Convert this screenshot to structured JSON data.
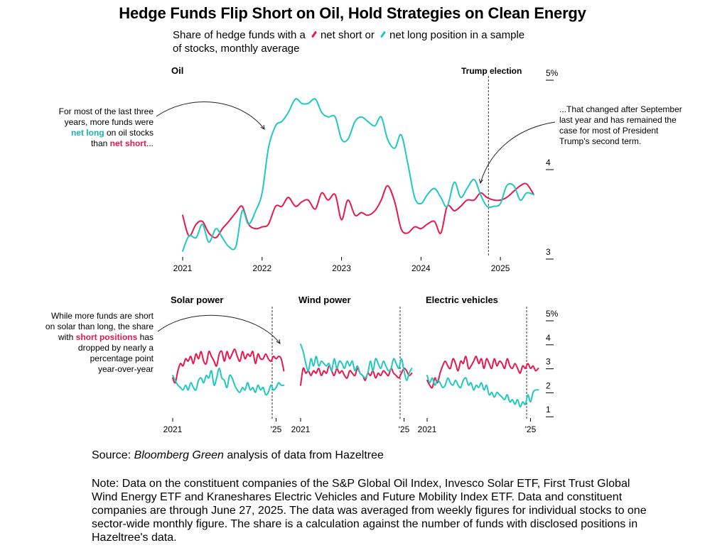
{
  "title": "Hedge Funds Flip Short on Oil, Hold Strategies on Clean Energy",
  "subtitle": {
    "part1": "Share of hedge funds with a",
    "short_label": "net short or",
    "long_label": "net long position in a sample",
    "part2": "of stocks, monthly average"
  },
  "colors": {
    "net_short": "#e8184b",
    "net_long": "#20c9c0"
  },
  "annotations": {
    "oil_left": {
      "line1": "For most of the last three",
      "line2": "years, more funds were",
      "teal": "net long",
      "mid": " on oil stocks",
      "pre": "than ",
      "red": "net short",
      "post": "..."
    },
    "oil_right": {
      "line1": "...That changed after September",
      "line2": "last year and has remained the",
      "line3": "case for most of President",
      "line4": "Trump's second term."
    },
    "solar": {
      "line1": "While more funds are short",
      "line2": "on solar than long, the share",
      "pre": "with ",
      "red": "short positions",
      "post": " has",
      "line4": "dropped by nearly a",
      "line5": "percentage point",
      "line6": "year-over-year"
    }
  },
  "source": {
    "pre": "Source: ",
    "italic": "Bloomberg Green",
    "post": " analysis of data from Hazeltree"
  },
  "note": "Note: Data on the constituent companies of the S&P Global Oil Index, Invesco Solar ETF, First Trust Global Wind Energy ETF and Kraneshares Electric Vehicles and Future Mobility Index ETF. Data and constituent companies are through June 27, 2025. The data was averaged from weekly figures for individual stocks to one sector-wide monthly figure. The share is a calculation against the number of funds with disclosed positions in Hazeltree's data.",
  "chart_data": [
    {
      "type": "line",
      "title": "Oil",
      "x_label_ticks": [
        "2021",
        "2022",
        "2023",
        "2024",
        "2025"
      ],
      "y_ticks": [
        "3",
        "4",
        "5%"
      ],
      "ylim": [
        3,
        5
      ],
      "xlim": [
        2021.0,
        2025.5
      ],
      "event": {
        "label": "Trump election",
        "x": 2024.85
      },
      "series": [
        {
          "name": "net short",
          "color": "#e8184b",
          "x": [
            2021.0,
            2021.08,
            2021.17,
            2021.25,
            2021.33,
            2021.42,
            2021.5,
            2021.58,
            2021.67,
            2021.75,
            2021.83,
            2021.92,
            2022.0,
            2022.08,
            2022.17,
            2022.25,
            2022.33,
            2022.42,
            2022.5,
            2022.58,
            2022.67,
            2022.75,
            2022.83,
            2022.92,
            2023.0,
            2023.08,
            2023.17,
            2023.25,
            2023.33,
            2023.42,
            2023.5,
            2023.58,
            2023.67,
            2023.75,
            2023.83,
            2023.92,
            2024.0,
            2024.08,
            2024.17,
            2024.25,
            2024.33,
            2024.42,
            2024.5,
            2024.58,
            2024.67,
            2024.75,
            2024.83,
            2024.92,
            2025.0,
            2025.08,
            2025.17,
            2025.25,
            2025.33,
            2025.42
          ],
          "values": [
            3.45,
            3.22,
            3.35,
            3.38,
            3.25,
            3.2,
            3.3,
            3.38,
            3.48,
            3.55,
            3.35,
            3.3,
            3.32,
            3.35,
            3.55,
            3.55,
            3.65,
            3.55,
            3.6,
            3.62,
            3.52,
            3.7,
            3.62,
            3.68,
            3.4,
            3.62,
            3.45,
            3.48,
            3.45,
            3.5,
            3.62,
            3.78,
            3.6,
            3.3,
            3.25,
            3.32,
            3.3,
            3.35,
            3.38,
            3.25,
            3.55,
            3.5,
            3.55,
            3.62,
            3.62,
            3.7,
            3.65,
            3.62,
            3.62,
            3.65,
            3.72,
            3.78,
            3.8,
            3.68
          ]
        },
        {
          "name": "net long",
          "color": "#20c9c0",
          "x": [
            2021.0,
            2021.08,
            2021.17,
            2021.25,
            2021.33,
            2021.42,
            2021.5,
            2021.58,
            2021.67,
            2021.75,
            2021.83,
            2021.92,
            2022.0,
            2022.08,
            2022.17,
            2022.25,
            2022.33,
            2022.42,
            2022.5,
            2022.58,
            2022.67,
            2022.75,
            2022.83,
            2022.92,
            2023.0,
            2023.08,
            2023.17,
            2023.25,
            2023.33,
            2023.42,
            2023.5,
            2023.58,
            2023.67,
            2023.75,
            2023.83,
            2023.92,
            2024.0,
            2024.08,
            2024.17,
            2024.25,
            2024.33,
            2024.42,
            2024.5,
            2024.58,
            2024.67,
            2024.75,
            2024.83,
            2024.92,
            2025.0,
            2025.08,
            2025.17,
            2025.25,
            2025.33,
            2025.42
          ],
          "values": [
            3.05,
            3.22,
            3.2,
            3.35,
            3.15,
            3.3,
            3.2,
            3.1,
            3.1,
            3.5,
            3.35,
            3.5,
            3.7,
            4.2,
            4.45,
            4.5,
            4.6,
            4.75,
            4.7,
            4.7,
            4.75,
            4.6,
            4.55,
            4.55,
            4.3,
            4.3,
            4.5,
            4.55,
            4.5,
            4.45,
            4.55,
            4.3,
            4.2,
            4.35,
            4.05,
            3.65,
            3.58,
            3.68,
            3.75,
            3.65,
            3.55,
            3.82,
            3.65,
            3.75,
            3.85,
            3.68,
            3.55,
            3.55,
            3.58,
            3.78,
            3.78,
            3.62,
            3.7,
            3.68
          ]
        }
      ]
    },
    {
      "type": "line",
      "title": "Solar power",
      "x_label_ticks": [
        "2021",
        "'25"
      ],
      "ylim": [
        0.8,
        5
      ],
      "xlim": [
        2021.0,
        2025.4
      ],
      "series": [
        {
          "name": "net short",
          "x": [
            2021.0,
            2021.1,
            2021.2,
            2021.3,
            2021.4,
            2021.5,
            2021.6,
            2021.7,
            2021.8,
            2021.9,
            2022.0,
            2022.1,
            2022.2,
            2022.3,
            2022.4,
            2022.5,
            2022.6,
            2022.7,
            2022.8,
            2022.9,
            2023.0,
            2023.1,
            2023.2,
            2023.3,
            2023.4,
            2023.5,
            2023.6,
            2023.7,
            2023.8,
            2023.9,
            2024.0,
            2024.1,
            2024.2,
            2024.3,
            2024.4,
            2024.5,
            2024.6,
            2024.7,
            2024.8,
            2024.9,
            2025.0,
            2025.1,
            2025.2,
            2025.3
          ],
          "values": [
            2.5,
            2.3,
            2.8,
            3.1,
            3.0,
            3.3,
            3.2,
            3.4,
            3.1,
            3.5,
            3.3,
            3.6,
            3.2,
            3.1,
            3.6,
            3.4,
            3.2,
            3.0,
            3.5,
            3.6,
            3.2,
            3.6,
            3.3,
            3.5,
            3.7,
            3.4,
            3.2,
            3.6,
            3.3,
            3.5,
            3.4,
            3.6,
            3.1,
            3.5,
            3.3,
            3.3,
            3.5,
            3.3,
            3.2,
            3.4,
            3.3,
            3.4,
            3.3,
            2.8
          ]
        },
        {
          "name": "net long",
          "x": [
            2021.0,
            2021.1,
            2021.2,
            2021.3,
            2021.4,
            2021.5,
            2021.6,
            2021.7,
            2021.8,
            2021.9,
            2022.0,
            2022.1,
            2022.2,
            2022.3,
            2022.4,
            2022.5,
            2022.6,
            2022.7,
            2022.8,
            2022.9,
            2023.0,
            2023.1,
            2023.2,
            2023.3,
            2023.4,
            2023.5,
            2023.6,
            2023.7,
            2023.8,
            2023.9,
            2024.0,
            2024.1,
            2024.2,
            2024.3,
            2024.4,
            2024.5,
            2024.6,
            2024.7,
            2024.8,
            2024.9,
            2025.0,
            2025.1,
            2025.2,
            2025.3
          ],
          "values": [
            2.6,
            2.4,
            2.2,
            2.1,
            2.0,
            2.2,
            2.0,
            2.3,
            2.1,
            2.0,
            2.4,
            2.5,
            2.3,
            2.6,
            2.5,
            2.8,
            2.2,
            2.5,
            2.9,
            2.5,
            2.4,
            2.1,
            2.6,
            2.5,
            2.2,
            2.0,
            1.9,
            2.1,
            2.0,
            2.3,
            2.0,
            2.1,
            1.9,
            2.2,
            2.0,
            2.1,
            1.8,
            1.9,
            2.2,
            2.0,
            2.1,
            2.3,
            2.2,
            2.2
          ]
        }
      ]
    },
    {
      "type": "line",
      "title": "Wind power",
      "x_label_ticks": [
        "2021",
        "'25"
      ],
      "ylim": [
        0.8,
        5
      ],
      "xlim": [
        2021.0,
        2025.4
      ],
      "series": [
        {
          "name": "net short",
          "x": [
            2021.0,
            2021.1,
            2021.2,
            2021.3,
            2021.4,
            2021.5,
            2021.6,
            2021.7,
            2021.8,
            2021.9,
            2022.0,
            2022.1,
            2022.2,
            2022.3,
            2022.4,
            2022.5,
            2022.6,
            2022.7,
            2022.8,
            2022.9,
            2023.0,
            2023.1,
            2023.2,
            2023.3,
            2023.4,
            2023.5,
            2023.6,
            2023.7,
            2023.8,
            2023.9,
            2024.0,
            2024.1,
            2024.2,
            2024.3,
            2024.4,
            2024.5,
            2024.6,
            2024.7,
            2024.8,
            2024.9,
            2025.0,
            2025.1,
            2025.2,
            2025.3
          ],
          "values": [
            2.2,
            2.9,
            2.7,
            2.8,
            2.6,
            2.8,
            2.7,
            2.9,
            2.6,
            2.8,
            2.7,
            3.0,
            2.8,
            2.6,
            2.9,
            2.7,
            2.8,
            2.6,
            2.5,
            2.8,
            2.7,
            2.6,
            2.9,
            2.7,
            2.6,
            2.4,
            2.7,
            2.6,
            2.8,
            2.5,
            2.7,
            2.6,
            2.8,
            2.7,
            2.6,
            2.9,
            2.7,
            2.6,
            2.5,
            2.7,
            2.9,
            2.8,
            2.6,
            2.7
          ]
        },
        {
          "name": "net long",
          "x": [
            2021.0,
            2021.1,
            2021.2,
            2021.3,
            2021.4,
            2021.5,
            2021.6,
            2021.7,
            2021.8,
            2021.9,
            2022.0,
            2022.1,
            2022.2,
            2022.3,
            2022.4,
            2022.5,
            2022.6,
            2022.7,
            2022.8,
            2022.9,
            2023.0,
            2023.1,
            2023.2,
            2023.3,
            2023.4,
            2023.5,
            2023.6,
            2023.7,
            2023.8,
            2023.9,
            2024.0,
            2024.1,
            2024.2,
            2024.3,
            2024.4,
            2024.5,
            2024.6,
            2024.7,
            2024.8,
            2024.9,
            2025.0,
            2025.1,
            2025.2,
            2025.3
          ],
          "values": [
            3.9,
            3.6,
            3.1,
            2.8,
            3.3,
            3.0,
            3.4,
            3.0,
            3.2,
            3.1,
            3.0,
            3.1,
            2.8,
            3.3,
            2.9,
            3.2,
            3.1,
            2.9,
            3.2,
            3.0,
            3.2,
            2.8,
            3.0,
            2.7,
            2.6,
            2.5,
            2.7,
            3.2,
            2.8,
            3.3,
            3.1,
            2.9,
            3.2,
            3.0,
            2.8,
            2.9,
            3.3,
            3.1,
            2.9,
            3.3,
            2.8,
            2.4,
            2.7,
            2.9
          ]
        }
      ]
    },
    {
      "type": "line",
      "title": "Electric vehicles",
      "x_label_ticks": [
        "2021",
        "'25"
      ],
      "y_ticks": [
        "1",
        "2",
        "3",
        "4",
        "5%"
      ],
      "ylim": [
        0.8,
        5
      ],
      "xlim": [
        2021.0,
        2025.4
      ],
      "series": [
        {
          "name": "net short",
          "x": [
            2021.0,
            2021.1,
            2021.2,
            2021.3,
            2021.4,
            2021.5,
            2021.6,
            2021.7,
            2021.8,
            2021.9,
            2022.0,
            2022.1,
            2022.2,
            2022.3,
            2022.4,
            2022.5,
            2022.6,
            2022.7,
            2022.8,
            2022.9,
            2023.0,
            2023.1,
            2023.2,
            2023.3,
            2023.4,
            2023.5,
            2023.6,
            2023.7,
            2023.8,
            2023.9,
            2024.0,
            2024.1,
            2024.2,
            2024.3,
            2024.4,
            2024.5,
            2024.6,
            2024.7,
            2024.8,
            2024.9,
            2025.0,
            2025.1,
            2025.2,
            2025.3
          ],
          "values": [
            2.4,
            2.2,
            2.1,
            2.5,
            2.3,
            2.7,
            3.0,
            3.2,
            3.0,
            2.9,
            3.3,
            3.1,
            2.8,
            3.2,
            3.1,
            3.4,
            2.9,
            3.0,
            3.2,
            3.4,
            3.1,
            3.3,
            2.9,
            3.3,
            3.1,
            2.9,
            3.3,
            3.0,
            3.2,
            3.1,
            2.9,
            3.3,
            3.0,
            2.9,
            3.1,
            2.9,
            2.7,
            3.0,
            2.9,
            3.1,
            2.9,
            3.0,
            2.8,
            2.9
          ]
        },
        {
          "name": "net long",
          "x": [
            2021.0,
            2021.1,
            2021.2,
            2021.3,
            2021.4,
            2021.5,
            2021.6,
            2021.7,
            2021.8,
            2021.9,
            2022.0,
            2022.1,
            2022.2,
            2022.3,
            2022.4,
            2022.5,
            2022.6,
            2022.7,
            2022.8,
            2022.9,
            2023.0,
            2023.1,
            2023.2,
            2023.3,
            2023.4,
            2023.5,
            2023.6,
            2023.7,
            2023.8,
            2023.9,
            2024.0,
            2024.1,
            2024.2,
            2024.3,
            2024.4,
            2024.5,
            2024.6,
            2024.7,
            2024.8,
            2024.9,
            2025.0,
            2025.1,
            2025.2,
            2025.3
          ],
          "values": [
            2.6,
            2.3,
            2.5,
            2.2,
            2.4,
            2.3,
            2.1,
            2.2,
            2.5,
            2.3,
            2.2,
            2.4,
            2.2,
            2.1,
            2.4,
            2.5,
            2.2,
            2.3,
            2.0,
            2.2,
            2.1,
            2.3,
            2.0,
            2.2,
            1.8,
            1.9,
            1.7,
            1.9,
            1.8,
            1.7,
            1.6,
            1.8,
            1.5,
            1.6,
            1.4,
            1.6,
            1.3,
            1.5,
            1.4,
            1.8,
            1.5,
            1.9,
            2.0,
            2.0
          ]
        }
      ]
    }
  ]
}
